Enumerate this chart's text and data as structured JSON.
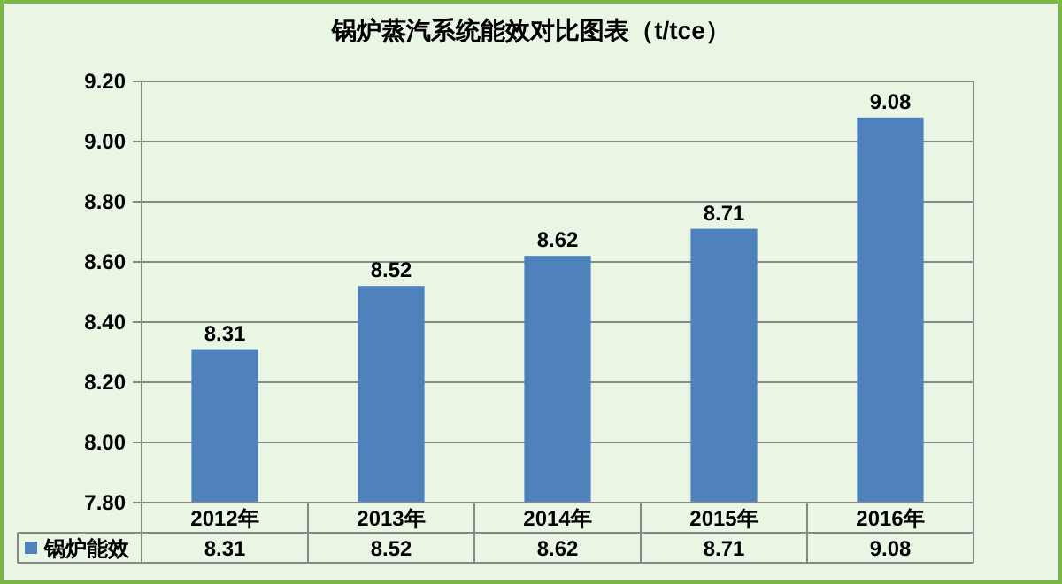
{
  "chart_data": {
    "type": "bar",
    "title": "锅炉蒸汽系统能效对比图表（t/tce）",
    "categories": [
      "2012年",
      "2013年",
      "2014年",
      "2015年",
      "2016年"
    ],
    "series": [
      {
        "name": "锅炉能效",
        "color": "#4f81bd",
        "values": [
          8.31,
          8.52,
          8.62,
          8.71,
          9.08
        ],
        "value_labels": [
          "8.31",
          "8.52",
          "8.62",
          "8.71",
          "9.08"
        ]
      }
    ],
    "ylim": [
      7.8,
      9.2
    ],
    "yticks": [
      {
        "value": 7.8,
        "label": "7.80"
      },
      {
        "value": 8.0,
        "label": "8.00"
      },
      {
        "value": 8.2,
        "label": "8.20"
      },
      {
        "value": 8.4,
        "label": "8.40"
      },
      {
        "value": 8.6,
        "label": "8.60"
      },
      {
        "value": 8.8,
        "label": "8.80"
      },
      {
        "value": 9.0,
        "label": "9.00"
      },
      {
        "value": 9.2,
        "label": "9.20"
      }
    ],
    "annotations": [
      "8.31",
      "8.52",
      "8.62",
      "8.71",
      "9.08"
    ],
    "grid": "y",
    "legend": "bottom",
    "data_labels": true
  }
}
